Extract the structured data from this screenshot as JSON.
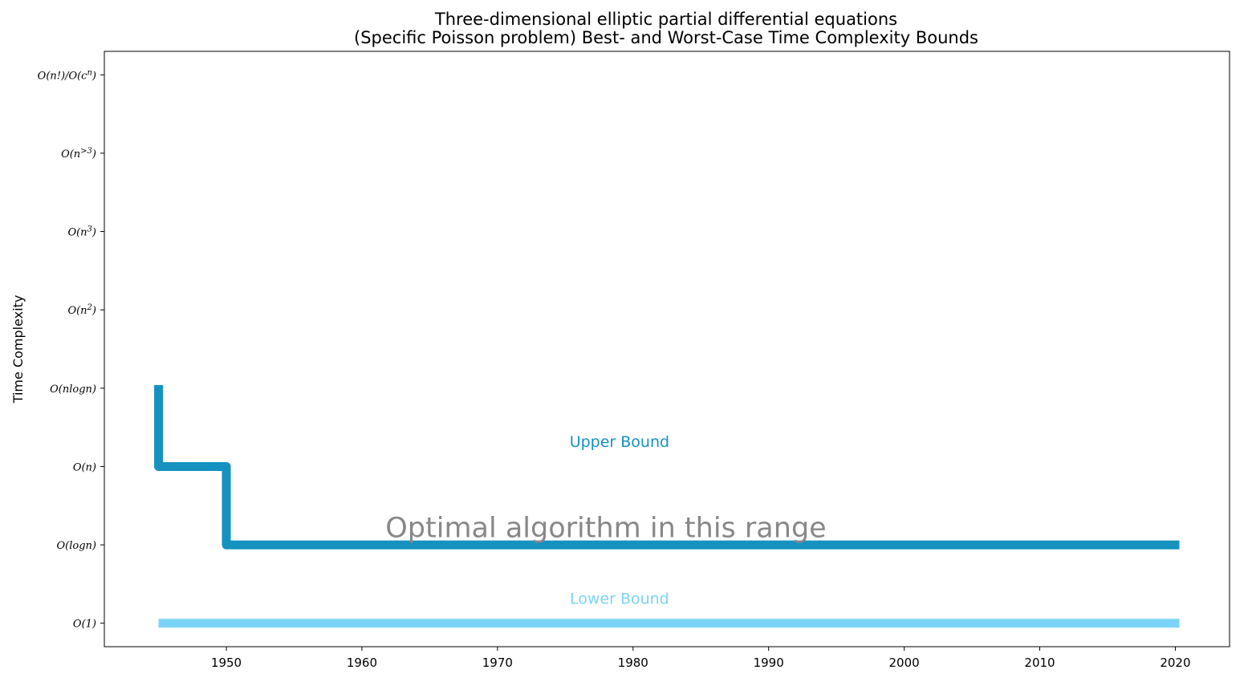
{
  "chart_data": {
    "type": "line",
    "title": "Three-dimensional elliptic partial differential equations\n(Specific Poisson problem) Best- and Worst-Case Time Complexity Bounds",
    "title_lines": [
      "Three-dimensional elliptic partial differential equations",
      "(Specific Poisson problem) Best- and Worst-Case Time Complexity Bounds"
    ],
    "xlabel": "",
    "ylabel": "Time Complexity",
    "xlim": [
      1941,
      2024
    ],
    "ylim": [
      -0.3,
      7.3
    ],
    "x_ticks": [
      1950,
      1960,
      1970,
      1980,
      1990,
      2000,
      2010,
      2020
    ],
    "y_ticks": [
      {
        "value": 0,
        "label": "O(1)"
      },
      {
        "value": 1,
        "label": "O(logn)"
      },
      {
        "value": 2,
        "label": "O(n)"
      },
      {
        "value": 3,
        "label": "O(nlogn)"
      },
      {
        "value": 4,
        "label": "O(n^2)"
      },
      {
        "value": 5,
        "label": "O(n^3)"
      },
      {
        "value": 6,
        "label": "O(n^>3)"
      },
      {
        "value": 7,
        "label": "O(n!)/O(c^n)"
      }
    ],
    "grid": false,
    "series": [
      {
        "name": "Upper Bound",
        "color": "#1592c0",
        "step": "post",
        "x": [
          1945,
          1945,
          1950,
          1950,
          2020.3
        ],
        "y": [
          3.04,
          2,
          2,
          1,
          1
        ]
      },
      {
        "name": "Lower Bound",
        "color": "#7bd4f5",
        "step": "post",
        "x": [
          1945,
          2020.3
        ],
        "y": [
          0,
          0
        ]
      }
    ],
    "annotations": [
      {
        "text": "Upper Bound",
        "x": 1979,
        "y": 2.25,
        "color": "#1592c0",
        "size": "medium"
      },
      {
        "text": "Optimal algorithm in this range",
        "x": 1978,
        "y": 1.1,
        "color": "#888888",
        "size": "large"
      },
      {
        "text": "Lower Bound",
        "x": 1979,
        "y": 0.25,
        "color": "#7bd4f5",
        "size": "medium"
      }
    ]
  }
}
